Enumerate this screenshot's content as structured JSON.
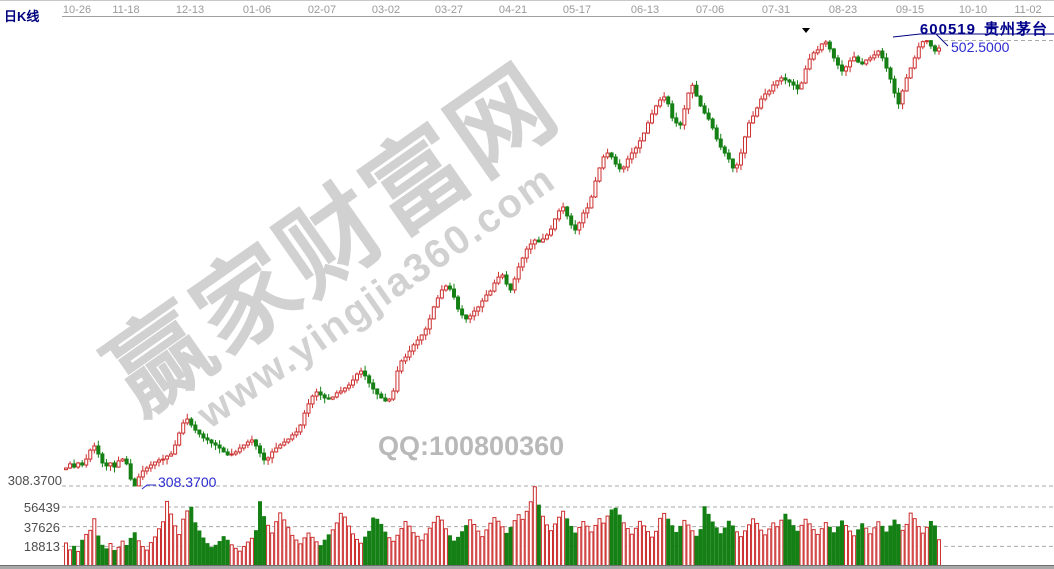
{
  "window": {
    "kline_label": "日K线",
    "stock_code": "600519",
    "stock_name": "贵州茅台"
  },
  "axis": {
    "dates": [
      "10-26",
      "11-18",
      "12-13",
      "01-06",
      "02-07",
      "03-02",
      "03-27",
      "04-21",
      "05-17",
      "06-13",
      "07-06",
      "07-31",
      "08-23",
      "09-15",
      "10-10",
      "11-02"
    ],
    "price_left_label": "308.3700",
    "volume_tick_labels": [
      "56439",
      "37626",
      "18813"
    ]
  },
  "annotations": {
    "high_label": "502.5000",
    "low_label": "308.3700",
    "high_value": 502.5,
    "low_value": 308.37
  },
  "watermark": {
    "brand": "赢家财富网",
    "url": "www.yingjia360.com",
    "qq": "QQ:100800360"
  },
  "colors": {
    "up": "#cc2e2e",
    "down": "#158015",
    "grid": "#a9a9a9",
    "axis_line": "#a0a0a0",
    "navy": "#000080",
    "blue": "#2b2bd0",
    "marker": "#000000"
  },
  "chart_data": {
    "type": "candlestick+volume",
    "title": "600519 贵州茅台 日K线",
    "price_axis": {
      "marked_low": 308.37,
      "marked_high": 502.5
    },
    "volume_axis": {
      "ticks": [
        56439,
        37626,
        18813
      ]
    },
    "x_axis_dates": [
      "10-26",
      "11-18",
      "12-13",
      "01-06",
      "02-07",
      "03-02",
      "03-27",
      "04-21",
      "05-17",
      "06-13",
      "07-06",
      "07-31",
      "08-23",
      "09-15",
      "10-10",
      "11-02"
    ],
    "first_open": 315.5,
    "closes": [
      316.2,
      318.0,
      316.6,
      318.4,
      317.5,
      320.1,
      324.0,
      325.8,
      322.3,
      318.4,
      317.1,
      318.4,
      316.6,
      319.3,
      320.1,
      318.0,
      311.4,
      308.4,
      312.3,
      314.9,
      316.2,
      317.5,
      318.8,
      319.7,
      320.1,
      321.4,
      322.3,
      326.2,
      331.4,
      335.8,
      337.5,
      334.9,
      332.7,
      331.0,
      329.3,
      328.4,
      327.1,
      326.2,
      324.9,
      323.2,
      321.9,
      322.3,
      323.2,
      324.9,
      326.2,
      327.5,
      328.4,
      325.8,
      322.7,
      319.7,
      320.6,
      323.2,
      324.9,
      326.2,
      327.5,
      328.8,
      330.6,
      331.9,
      334.9,
      340.1,
      344.1,
      347.5,
      349.3,
      348.0,
      346.7,
      346.2,
      347.1,
      348.9,
      349.7,
      351.0,
      352.3,
      354.5,
      357.1,
      358.4,
      356.3,
      353.2,
      350.6,
      348.4,
      346.7,
      345.4,
      346.2,
      349.7,
      358.4,
      362.8,
      364.5,
      367.1,
      369.8,
      371.9,
      374.1,
      376.7,
      381.1,
      386.3,
      390.2,
      393.7,
      395.4,
      394.1,
      390.6,
      385.4,
      382.8,
      381.1,
      382.4,
      384.5,
      386.3,
      388.9,
      391.5,
      393.2,
      396.7,
      399.3,
      400.2,
      396.3,
      393.7,
      398.5,
      403.7,
      407.6,
      411.5,
      413.7,
      415.4,
      414.6,
      415.9,
      417.6,
      420.2,
      424.6,
      428.1,
      429.8,
      425.9,
      422.0,
      419.8,
      422.9,
      427.2,
      429.4,
      434.2,
      441.1,
      446.8,
      451.6,
      453.3,
      451.6,
      448.5,
      446.4,
      447.2,
      450.7,
      453.3,
      455.5,
      458.6,
      462.0,
      466.4,
      470.3,
      473.8,
      476.4,
      477.7,
      474.7,
      468.6,
      466.4,
      465.5,
      472.5,
      479.4,
      482.8,
      478.1,
      473.8,
      470.7,
      468.1,
      464.2,
      459.4,
      455.9,
      453.3,
      450.7,
      446.8,
      448.1,
      453.3,
      460.3,
      466.4,
      469.4,
      472.9,
      476.8,
      479.0,
      480.3,
      482.9,
      484.7,
      486.0,
      485.1,
      484.2,
      482.9,
      481.2,
      483.8,
      489.9,
      494.2,
      496.9,
      498.2,
      500.8,
      501.6,
      498.6,
      494.7,
      491.6,
      489.0,
      490.8,
      493.4,
      495.1,
      492.9,
      492.1,
      493.8,
      494.7,
      496.0,
      497.7,
      494.7,
      490.3,
      485.5,
      479.4,
      474.7,
      480.3,
      486.0,
      490.3,
      494.7,
      499.5,
      501.8,
      502.2,
      499.9,
      497.7,
      499.0
    ],
    "volumes": [
      22000,
      15400,
      18800,
      13900,
      24600,
      30200,
      34100,
      45200,
      28700,
      19800,
      16400,
      21500,
      14800,
      17900,
      23800,
      19600,
      26400,
      31800,
      24100,
      18600,
      15200,
      22400,
      27800,
      35600,
      42300,
      61800,
      49700,
      38400,
      30100,
      44800,
      52600,
      56200,
      41300,
      33500,
      26800,
      21400,
      17600,
      19800,
      23400,
      28100,
      24600,
      20300,
      16900,
      14200,
      18700,
      22900,
      26500,
      33800,
      61500,
      47200,
      38900,
      31600,
      42400,
      50800,
      44100,
      36700,
      29300,
      24800,
      21200,
      26900,
      31500,
      27400,
      23100,
      19500,
      24700,
      29800,
      34600,
      41200,
      50400,
      46800,
      38200,
      30700,
      25400,
      21800,
      27600,
      33100,
      45900,
      44700,
      39800,
      32400,
      27100,
      23600,
      29400,
      35800,
      42600,
      38100,
      31900,
      28400,
      24700,
      30600,
      36200,
      41800,
      47500,
      43900,
      35600,
      28900,
      23800,
      27400,
      32800,
      38600,
      44200,
      39700,
      33400,
      28100,
      34500,
      40900,
      46300,
      42800,
      37500,
      31200,
      36800,
      43400,
      49100,
      44600,
      52300,
      61400,
      75800,
      58200,
      47600,
      39300,
      33800,
      40200,
      46700,
      52400,
      45100,
      37800,
      31500,
      36900,
      42500,
      38100,
      32600,
      38800,
      45300,
      41000,
      47800,
      53600,
      55200,
      48700,
      41300,
      35800,
      30400,
      36100,
      42700,
      38400,
      32900,
      27600,
      33200,
      45600,
      50300,
      44800,
      38500,
      32100,
      37900,
      43600,
      39200,
      33700,
      28400,
      34800,
      56700,
      49400,
      42100,
      36500,
      30900,
      36400,
      42800,
      38300,
      32700,
      28100,
      33600,
      39400,
      45100,
      40700,
      34300,
      29800,
      35400,
      41200,
      37600,
      43800,
      49500,
      44100,
      38600,
      33200,
      38900,
      44700,
      40300,
      34800,
      30200,
      35700,
      41500,
      37100,
      31800,
      37400,
      43100,
      38700,
      33400,
      28900,
      34600,
      40400,
      36200,
      30800,
      36500,
      42300,
      37900,
      32500,
      38200,
      43900,
      39600,
      34100,
      39800,
      50600,
      45300,
      37700,
      31400,
      37000,
      42600,
      38300,
      25100
    ],
    "annotations": [
      {
        "type": "low",
        "text": "308.3700"
      },
      {
        "type": "high",
        "text": "502.5000"
      }
    ],
    "legend_position": "none",
    "grid": "dashed-horizontal"
  }
}
